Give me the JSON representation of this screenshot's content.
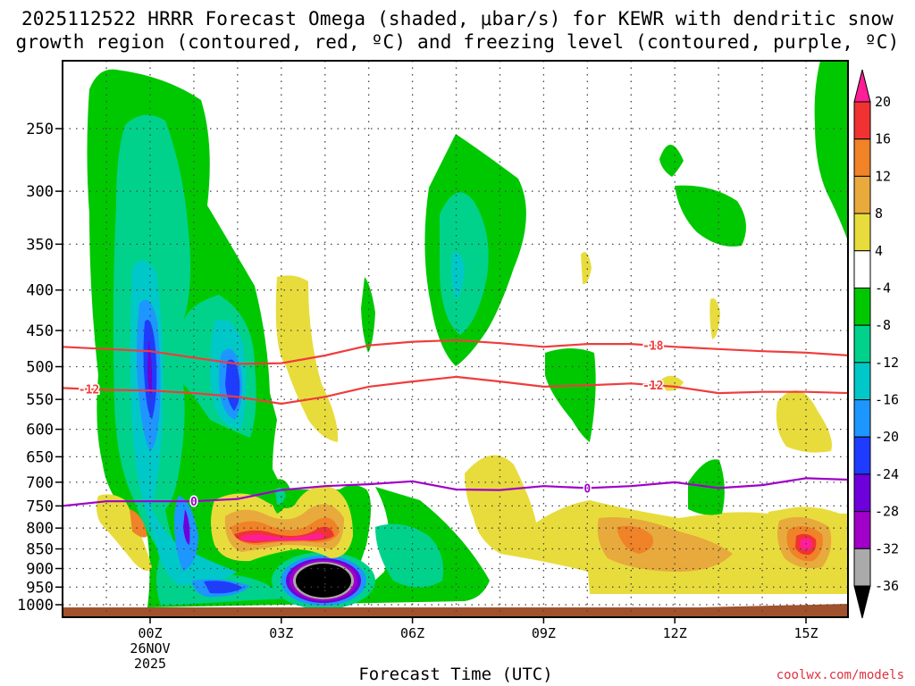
{
  "title_line1": "2025112522 HRRR Forecast Omega (shaded, μbar/s) for KEWR with dendritic snow",
  "title_line2": "growth region (contoured, red, ºC) and freezing level (contoured, purple, ºC)",
  "x_axis_title": "Forecast Time (UTC)",
  "credit": "coolwx.com/models",
  "chart_data": {
    "type": "time-height cross-section (filled contour)",
    "title": "2025112522 HRRR Forecast Omega (shaded, μbar/s) for KEWR with dendritic snow growth region (contoured, red, ºC) and freezing level (contoured, purple, ºC)",
    "xlabel": "Forecast Time (UTC)",
    "ylabel": "",
    "x_ticks": [
      {
        "label": "00Z",
        "label2": "26NOV",
        "label3": "2025",
        "hour": 0
      },
      {
        "label": "03Z",
        "hour": 3
      },
      {
        "label": "06Z",
        "hour": 6
      },
      {
        "label": "09Z",
        "hour": 9
      },
      {
        "label": "12Z",
        "hour": 12
      },
      {
        "label": "15Z",
        "hour": 15
      }
    ],
    "x_range_hours": [
      -2,
      16
    ],
    "y_ticks_hPa": [
      250,
      300,
      350,
      400,
      450,
      500,
      550,
      600,
      650,
      700,
      750,
      800,
      850,
      900,
      950,
      1000
    ],
    "y_range_hPa": [
      1000,
      210
    ],
    "grid": true,
    "colorbar": {
      "levels": [
        20,
        16,
        12,
        8,
        4,
        -4,
        -8,
        -12,
        -16,
        -20,
        -24,
        -28,
        -32,
        -36
      ],
      "colors": [
        "#ff1e96",
        "#f03232",
        "#f08228",
        "#e8aa3c",
        "#e8dc3c",
        "#ffffff",
        "#00c800",
        "#00d28c",
        "#00c8c8",
        "#1e96ff",
        "#1e3cff",
        "#6e00dc",
        "#a000c8",
        "#aaaaaa",
        "#000000"
      ]
    },
    "isotherms": [
      {
        "label": "-18",
        "color": "#f03c3c",
        "points": [
          [
            -2,
            472
          ],
          [
            0,
            478
          ],
          [
            1,
            487
          ],
          [
            2,
            496
          ],
          [
            3,
            495
          ],
          [
            4,
            484
          ],
          [
            5,
            470
          ],
          [
            6,
            465
          ],
          [
            7,
            463
          ],
          [
            8,
            467
          ],
          [
            9,
            472
          ],
          [
            10,
            468
          ],
          [
            11,
            468
          ],
          [
            12,
            472
          ],
          [
            13,
            475
          ],
          [
            14,
            478
          ],
          [
            15,
            480
          ],
          [
            16,
            484
          ]
        ]
      },
      {
        "label": "-12",
        "color": "#f03c3c",
        "points": [
          [
            -2,
            532
          ],
          [
            -1,
            535
          ],
          [
            0,
            536
          ],
          [
            1,
            540
          ],
          [
            2,
            546
          ],
          [
            3,
            557
          ],
          [
            4,
            546
          ],
          [
            5,
            530
          ],
          [
            6,
            522
          ],
          [
            7,
            515
          ],
          [
            8,
            522
          ],
          [
            9,
            530
          ],
          [
            10,
            528
          ],
          [
            11,
            525
          ],
          [
            12,
            530
          ],
          [
            13,
            540
          ],
          [
            14,
            538
          ],
          [
            15,
            538
          ],
          [
            16,
            540
          ]
        ]
      },
      {
        "label": "0",
        "color": "#a000c8",
        "points": [
          [
            -2,
            750
          ],
          [
            -1,
            740
          ],
          [
            0,
            740
          ],
          [
            1,
            740
          ],
          [
            2,
            735
          ],
          [
            3,
            716
          ],
          [
            4,
            708
          ],
          [
            5,
            704
          ],
          [
            6,
            698
          ],
          [
            7,
            715
          ],
          [
            8,
            716
          ],
          [
            9,
            708
          ],
          [
            10,
            712
          ],
          [
            11,
            708
          ],
          [
            12,
            700
          ],
          [
            13,
            712
          ],
          [
            14,
            706
          ],
          [
            15,
            692
          ],
          [
            16,
            695
          ]
        ]
      }
    ],
    "omega_features": [
      {
        "desc": "rising motion column near 00Z",
        "hour": 0,
        "p_range": [
          240,
          1000
        ],
        "peak_ubar_s": -28
      },
      {
        "desc": "rising motion core near 02Z",
        "hour": 2,
        "p_range": [
          420,
          600
        ],
        "peak_ubar_s": -24
      },
      {
        "desc": "strong rising motion near 04Z",
        "hour": 4,
        "p": 940,
        "peak_ubar_s": -36
      },
      {
        "desc": "sinking motion near 02-04Z",
        "hour": 3,
        "p": 820,
        "peak_ubar_s": 20
      },
      {
        "desc": "weak sinking 10Z-14Z",
        "hour": 11,
        "p": 820,
        "peak_ubar_s": 12
      },
      {
        "desc": "sinking maximum near 15Z",
        "hour": 15,
        "p": 830,
        "peak_ubar_s": 20
      }
    ]
  }
}
